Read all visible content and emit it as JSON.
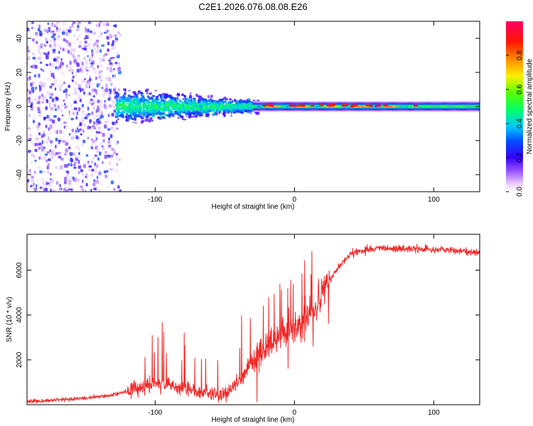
{
  "figure_title": "C2E1.2026.076.08.08.E26",
  "chart_data": [
    {
      "type": "heatmap",
      "title": "C2E1.2026.076.08.08.E26",
      "xlabel": "Height of straight line (km)",
      "ylabel": "Frequency (Hz)",
      "xlim": [
        -192,
        133
      ],
      "ylim": [
        -50,
        50
      ],
      "xticks": [
        -100,
        0,
        100
      ],
      "yticks": [
        -40,
        -20,
        0,
        20,
        40
      ],
      "xtick_labels": [
        "-100",
        "0",
        "100"
      ],
      "ytick_labels": [
        "-40",
        "-20",
        "0",
        "20",
        "40"
      ],
      "colorbar": {
        "label": "Normalized spectral amplitude",
        "range": [
          0,
          1
        ],
        "ticks": [
          0.0,
          0.2,
          0.4,
          0.6,
          0.8
        ],
        "tick_labels": [
          "0.0",
          "0.2",
          "0.4",
          "0.6",
          "0.8"
        ],
        "colormap_stops": [
          "#ffffff",
          "#a07aff",
          "#4b00ff",
          "#0044ff",
          "#00ccff",
          "#00ff66",
          "#66ff00",
          "#ffee00",
          "#ff7700",
          "#ff0000",
          "#ff0077"
        ]
      },
      "description_bands": [
        {
          "x_range": [
            -192,
            -125
          ],
          "pattern": "broad scattered noise across all frequencies",
          "amplitude": 0.2
        },
        {
          "x_range": [
            -125,
            -30
          ],
          "pattern": "concentrated band narrowing toward 0 Hz",
          "freq_halfwidth": [
            15,
            5
          ],
          "amplitude": 0.35
        },
        {
          "x_range": [
            -30,
            133
          ],
          "pattern": "narrow line at 0 Hz",
          "freq_halfwidth": 2,
          "amplitude": 0.75
        }
      ]
    },
    {
      "type": "line",
      "xlabel": "Height of straight line (km)",
      "ylabel": "SNR (10 * v/v)",
      "xlim": [
        -192,
        133
      ],
      "ylim": [
        0,
        7600
      ],
      "xticks": [
        -100,
        0,
        100
      ],
      "yticks": [
        2000,
        4000,
        6000
      ],
      "xtick_labels": [
        "-100",
        "0",
        "100"
      ],
      "ytick_labels": [
        "2000",
        "4000",
        "6000"
      ],
      "series": [
        {
          "name": "SNR",
          "color": "#ee2a2a",
          "x": [
            -192,
            -180,
            -160,
            -140,
            -130,
            -120,
            -110,
            -100,
            -90,
            -80,
            -70,
            -60,
            -50,
            -45,
            -40,
            -35,
            -30,
            -25,
            -20,
            -15,
            -10,
            -5,
            0,
            5,
            10,
            15,
            20,
            25,
            30,
            35,
            40,
            45,
            50,
            60,
            70,
            80,
            90,
            100,
            110,
            120,
            133
          ],
          "y": [
            150,
            180,
            250,
            350,
            450,
            600,
            800,
            950,
            900,
            750,
            600,
            500,
            450,
            700,
            1100,
            1500,
            2000,
            2300,
            2600,
            2900,
            3100,
            3300,
            3400,
            3600,
            3900,
            4300,
            4900,
            5500,
            6000,
            6400,
            6700,
            6850,
            6900,
            6950,
            6950,
            6950,
            6950,
            6900,
            6900,
            6850,
            6750
          ]
        }
      ]
    }
  ]
}
